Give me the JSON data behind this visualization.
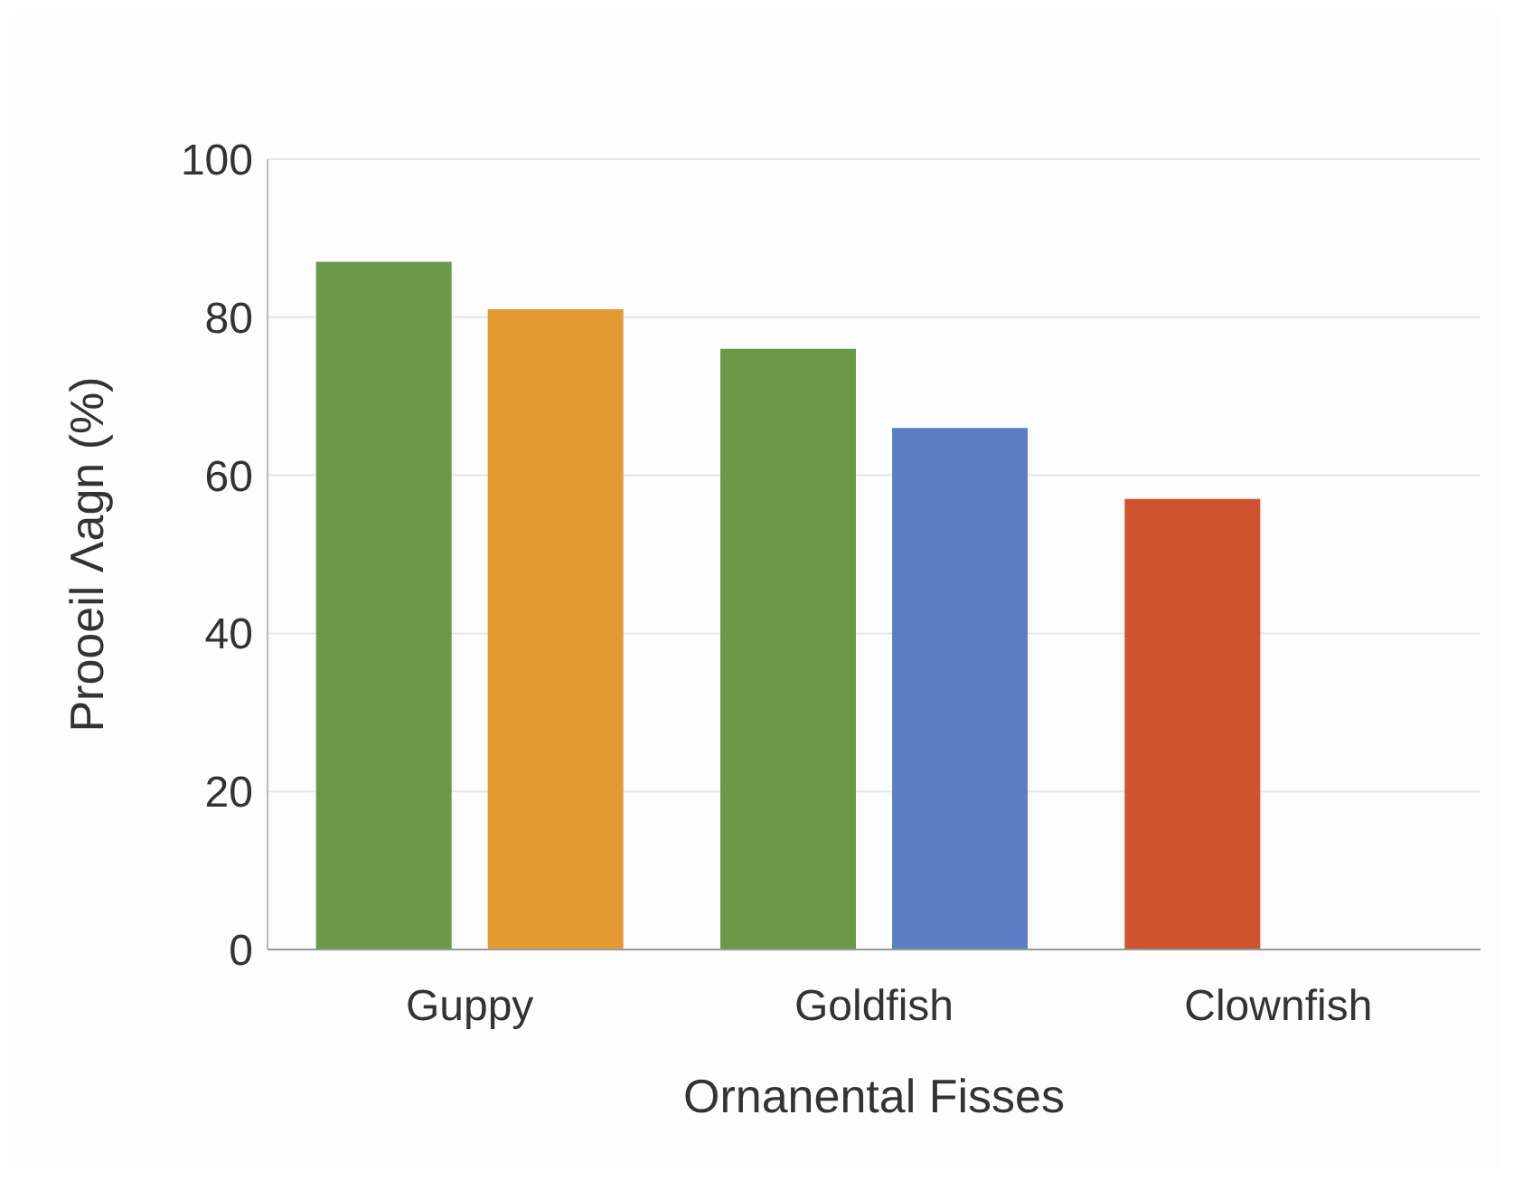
{
  "chart_data": {
    "type": "bar",
    "xlabel": "Ornanental Fisses",
    "ylabel": "Prooeil Λagn (%)",
    "categories": [
      "Guppy",
      "Goldfish",
      "Clownfish"
    ],
    "series": [
      {
        "colors": [
          "#6a9a48",
          "#6a9a48",
          "#d0532f"
        ],
        "values": [
          87,
          76,
          57
        ]
      },
      {
        "colors": [
          "#e39a30",
          "#5b7fc2",
          null
        ],
        "values": [
          81,
          66,
          null
        ]
      }
    ],
    "ylim": [
      0,
      100
    ],
    "yticks": [
      0,
      20,
      40,
      60,
      80,
      100
    ],
    "grid": "y"
  }
}
